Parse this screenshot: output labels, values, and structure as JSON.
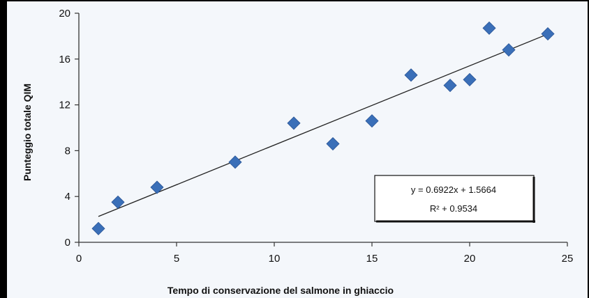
{
  "chart_data": {
    "type": "scatter",
    "xlabel": "Tempo di conservazione del salmone in ghiaccio",
    "ylabel": "Punteggio totale QIM",
    "xlim": [
      0,
      25
    ],
    "ylim": [
      0,
      20
    ],
    "xticks": [
      "0",
      "5",
      "10",
      "15",
      "20",
      "25"
    ],
    "yticks": [
      "0",
      "4",
      "8",
      "12",
      "16",
      "20"
    ],
    "grid": false,
    "points": [
      {
        "x": 1,
        "y": 1.2
      },
      {
        "x": 2,
        "y": 3.5
      },
      {
        "x": 4,
        "y": 4.8
      },
      {
        "x": 8,
        "y": 7.0
      },
      {
        "x": 11,
        "y": 10.4
      },
      {
        "x": 13,
        "y": 8.6
      },
      {
        "x": 15,
        "y": 10.6
      },
      {
        "x": 17,
        "y": 14.6
      },
      {
        "x": 19,
        "y": 13.7
      },
      {
        "x": 20,
        "y": 14.2
      },
      {
        "x": 21,
        "y": 18.7
      },
      {
        "x": 22,
        "y": 16.8
      },
      {
        "x": 24,
        "y": 18.2
      }
    ],
    "trendline": {
      "slope": 0.6922,
      "intercept": 1.5664,
      "x_from": 1,
      "x_to": 24
    },
    "annotation": {
      "equation": "y = 0.6922x + 1.5664",
      "r_squared": "R² + 0.9534"
    },
    "colors": {
      "marker": "#3a6fb8",
      "line": "#222222",
      "axis": "#333333"
    }
  }
}
